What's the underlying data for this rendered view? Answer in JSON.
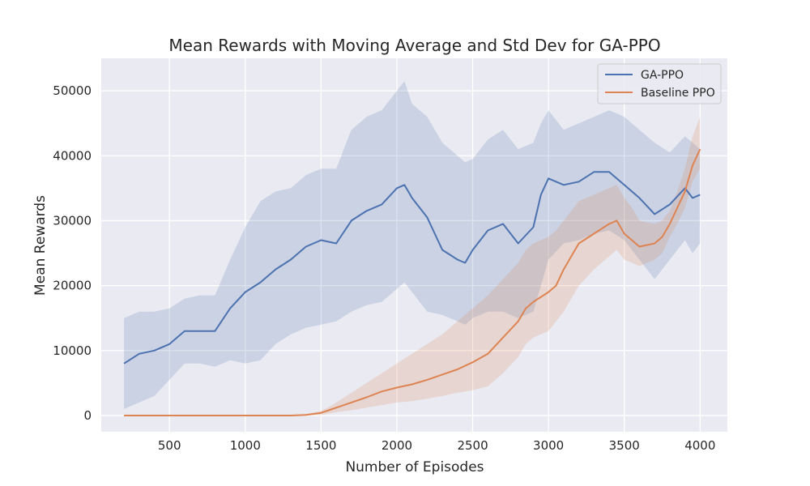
{
  "chart_data": {
    "type": "line",
    "title": "Mean Rewards with Moving Average and Std Dev for GA-PPO",
    "xlabel": "Number of Episodes",
    "ylabel": "Mean Rewards",
    "xlim": [
      50,
      4180
    ],
    "ylim": [
      -2500,
      55000
    ],
    "xticks": [
      500,
      1000,
      1500,
      2000,
      2500,
      3000,
      3500,
      4000
    ],
    "yticks": [
      0,
      10000,
      20000,
      30000,
      40000,
      50000
    ],
    "xtick_labels": [
      "500",
      "1000",
      "1500",
      "2000",
      "2500",
      "3000",
      "3500",
      "4000"
    ],
    "ytick_labels": [
      "0",
      "10000",
      "20000",
      "30000",
      "40000",
      "50000"
    ],
    "grid": true,
    "legend_position": "top-right",
    "background_color": "#eaeaf2",
    "series": [
      {
        "name": "GA-PPO",
        "color": "#4c72b0",
        "band_color": "#4c72b0",
        "x": [
          200,
          300,
          400,
          500,
          600,
          700,
          800,
          900,
          1000,
          1100,
          1200,
          1300,
          1400,
          1500,
          1600,
          1700,
          1800,
          1900,
          2000,
          2050,
          2100,
          2200,
          2300,
          2400,
          2450,
          2500,
          2600,
          2700,
          2800,
          2900,
          2950,
          3000,
          3100,
          3200,
          3300,
          3400,
          3500,
          3600,
          3700,
          3800,
          3900,
          3950,
          4000
        ],
        "mean": [
          8000,
          9500,
          10000,
          11000,
          13000,
          13000,
          13000,
          16500,
          19000,
          20500,
          22500,
          24000,
          26000,
          27000,
          26500,
          30000,
          31500,
          32500,
          35000,
          35500,
          33500,
          30500,
          25500,
          24000,
          23500,
          25500,
          28500,
          29500,
          26500,
          29000,
          34000,
          36500,
          35500,
          36000,
          37500,
          37500,
          35500,
          33500,
          31000,
          32500,
          35000,
          33500,
          34000
        ],
        "upper": [
          15000,
          16000,
          16000,
          16500,
          18000,
          18500,
          18500,
          24000,
          29000,
          33000,
          34500,
          35000,
          37000,
          38000,
          38000,
          44000,
          46000,
          47000,
          50000,
          51500,
          48000,
          46000,
          42000,
          40000,
          39000,
          39500,
          42500,
          44000,
          41000,
          42000,
          45000,
          47000,
          44000,
          45000,
          46000,
          47000,
          46000,
          44000,
          42000,
          40500,
          43000,
          42000,
          41000
        ],
        "lower": [
          1000,
          2000,
          3000,
          5500,
          8000,
          8000,
          7500,
          8500,
          8000,
          8500,
          11000,
          12500,
          13500,
          14000,
          14500,
          16000,
          17000,
          17500,
          19500,
          20500,
          19000,
          16000,
          15500,
          14500,
          14000,
          15000,
          16000,
          16000,
          15000,
          16000,
          20000,
          24000,
          26500,
          27000,
          28000,
          28500,
          27000,
          24000,
          21000,
          24000,
          27000,
          25000,
          26500
        ]
      },
      {
        "name": "Baseline PPO",
        "color": "#dd8452",
        "band_color": "#dd8452",
        "x": [
          200,
          400,
          600,
          800,
          1000,
          1100,
          1200,
          1300,
          1400,
          1500,
          1550,
          1600,
          1700,
          1800,
          1900,
          2000,
          2100,
          2200,
          2300,
          2400,
          2500,
          2600,
          2700,
          2800,
          2850,
          2900,
          3000,
          3050,
          3100,
          3200,
          3300,
          3400,
          3450,
          3500,
          3550,
          3600,
          3700,
          3750,
          3800,
          3850,
          3900,
          3950,
          4000
        ],
        "mean": [
          0,
          0,
          0,
          0,
          0,
          0,
          0,
          0,
          100,
          400,
          800,
          1200,
          2000,
          2800,
          3700,
          4300,
          4800,
          5500,
          6300,
          7100,
          8200,
          9500,
          12000,
          14500,
          16500,
          17500,
          19000,
          20000,
          22500,
          26500,
          28000,
          29500,
          30000,
          28000,
          27000,
          26000,
          26500,
          27500,
          29500,
          32000,
          34500,
          38500,
          41000
        ],
        "upper": [
          0,
          0,
          0,
          0,
          0,
          0,
          0,
          100,
          200,
          700,
          1300,
          2000,
          3500,
          5000,
          6500,
          8000,
          9500,
          11000,
          12500,
          14500,
          16500,
          18500,
          21000,
          23500,
          25500,
          26500,
          27500,
          28500,
          30000,
          33000,
          34000,
          35000,
          35500,
          33500,
          32000,
          30000,
          29500,
          30000,
          31500,
          34500,
          38000,
          43000,
          46000
        ],
        "lower": [
          0,
          0,
          0,
          0,
          0,
          0,
          0,
          0,
          0,
          100,
          300,
          500,
          800,
          1200,
          1600,
          2000,
          2200,
          2600,
          3000,
          3500,
          3900,
          4500,
          6500,
          9000,
          11000,
          12000,
          13000,
          14500,
          16000,
          20000,
          22500,
          24500,
          25500,
          24000,
          23500,
          23000,
          24000,
          25000,
          27500,
          29500,
          32000,
          36000,
          38000
        ]
      }
    ]
  }
}
